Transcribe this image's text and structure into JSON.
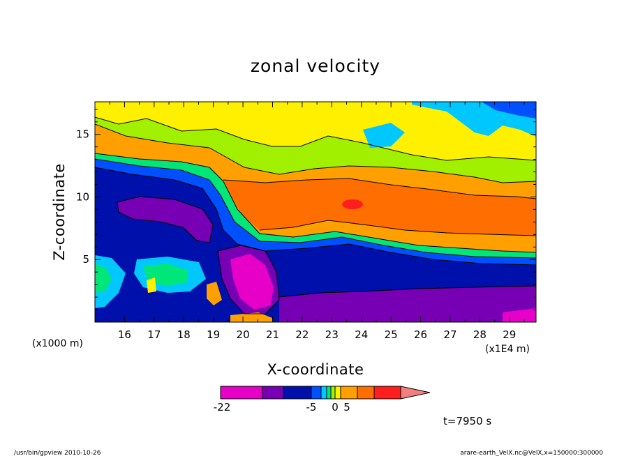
{
  "chart_data": {
    "type": "heatmap",
    "title": "zonal velocity",
    "xlabel": "X-coordinate",
    "ylabel": "Z-coordinate",
    "x_unit_label": "(x1E4 m)",
    "y_unit_label": "(x1000 m)",
    "x_ticks": [
      16,
      17,
      18,
      19,
      20,
      21,
      22,
      23,
      24,
      25,
      26,
      27,
      28,
      29
    ],
    "y_ticks": [
      5,
      10,
      15
    ],
    "xlim": [
      15.0,
      29.9
    ],
    "ylim": [
      0.0,
      17.6
    ],
    "grid": false,
    "colorbar": {
      "orientation": "horizontal",
      "labels": [
        "-22",
        "-5",
        "0",
        "5"
      ],
      "label_values": [
        -22,
        -5,
        0,
        5
      ],
      "colors": [
        "#e600c8",
        "#7800b4",
        "#0010aa",
        "#0050ff",
        "#00c8ff",
        "#00e678",
        "#a0f000",
        "#fff000",
        "#ffa000",
        "#ff6e00",
        "#ff1e1e",
        "#f08080"
      ],
      "extend": "max"
    },
    "regions_approx": [
      {
        "feature": "upper-layer easterly core",
        "x": [
          21,
          30
        ],
        "z": [
          7,
          11
        ],
        "value": 10
      },
      {
        "feature": "local maximum",
        "x": [
          23.8,
          23.8
        ],
        "z": [
          9.6,
          9.6
        ],
        "value": 20
      },
      {
        "feature": "lower westerly band",
        "x": [
          21,
          30
        ],
        "z": [
          0.5,
          3.5
        ],
        "value": -15
      },
      {
        "feature": "strong westerly over slope",
        "x": [
          19.8,
          20.8
        ],
        "z": [
          2,
          4.5
        ],
        "value": -22
      },
      {
        "feature": "upstream westerly band",
        "x": [
          15.5,
          19
        ],
        "z": [
          8,
          10
        ],
        "value": -15
      },
      {
        "feature": "weak upper flow",
        "x": [
          15,
          30
        ],
        "z": [
          13,
          17.6
        ],
        "value": 0
      }
    ]
  },
  "time_label": "t=7950 s",
  "footer": {
    "left": "/usr/bin/gpview  2010-10-26",
    "right": "arare-earth_VelX.nc@VelX,x=150000:300000"
  }
}
